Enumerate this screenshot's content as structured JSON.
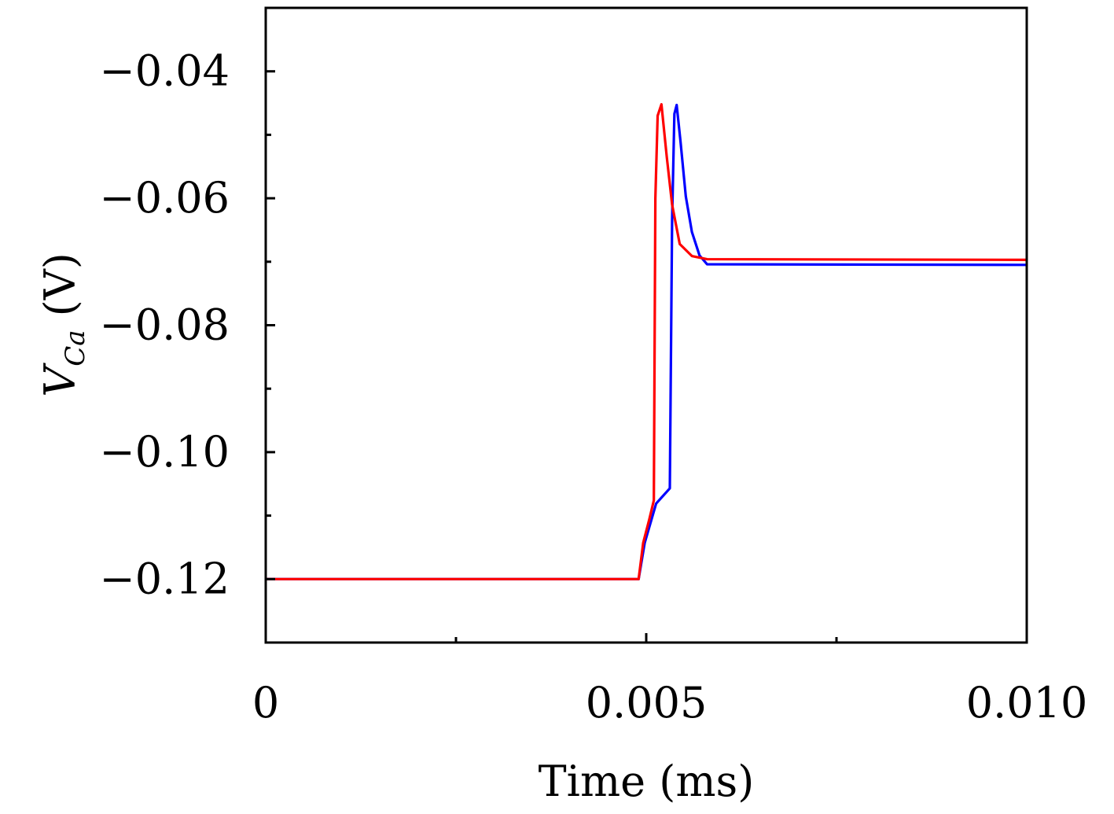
{
  "chart_data": {
    "type": "line",
    "title": "",
    "xlabel": "Time (ms)",
    "ylabel_main": "V",
    "ylabel_sub": "Ca",
    "ylabel_unit": " (V)",
    "xlim": [
      0,
      0.01
    ],
    "ylim": [
      -0.13,
      -0.03
    ],
    "xticks": [
      0,
      0.005,
      0.01
    ],
    "xtick_labels": [
      "0",
      "0.005",
      "0.010"
    ],
    "xminor": [
      0.0025,
      0.0075
    ],
    "yticks": [
      -0.04,
      -0.06,
      -0.08,
      -0.1,
      -0.12
    ],
    "ytick_labels": [
      "−0.04",
      "−0.06",
      "−0.08",
      "−0.10",
      "−0.12"
    ],
    "yminor": [
      -0.05,
      -0.07,
      -0.09,
      -0.11
    ],
    "grid": false,
    "series": [
      {
        "color": "#0000ff",
        "x": [
          0,
          0.0049,
          0.00498,
          0.00513,
          0.00531,
          0.00534,
          0.00537,
          0.0054,
          0.00545,
          0.00552,
          0.0056,
          0.0057,
          0.0058,
          0.01
        ],
        "y": [
          -0.12,
          -0.12,
          -0.1143,
          -0.1081,
          -0.1057,
          -0.0634,
          -0.0467,
          -0.0453,
          -0.051,
          -0.0597,
          -0.0653,
          -0.069,
          -0.0704,
          -0.0705
        ]
      },
      {
        "color": "#ff0000",
        "x": [
          0,
          0.0049,
          0.00496,
          0.00504,
          0.0051,
          0.00512,
          0.00515,
          0.0052,
          0.00527,
          0.00534,
          0.00544,
          0.0056,
          0.0058,
          0.01
        ],
        "y": [
          -0.12,
          -0.12,
          -0.1143,
          -0.1106,
          -0.1076,
          -0.06,
          -0.047,
          -0.0452,
          -0.0535,
          -0.061,
          -0.0672,
          -0.0691,
          -0.0696,
          -0.0697
        ]
      }
    ]
  }
}
